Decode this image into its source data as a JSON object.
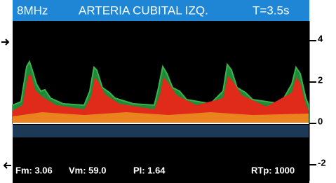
{
  "header": {
    "probe": "8MHz",
    "title": "ARTERIA CUBITAL IZQ.",
    "time": "T=3.5s"
  },
  "axis": {
    "ticks": [
      4,
      2,
      0,
      -2
    ]
  },
  "footer": {
    "fm": "Fm: 3.06",
    "vm": "Vm: 59.0",
    "pi": "PI: 1.64",
    "rtp": "RTp: 1000"
  }
}
